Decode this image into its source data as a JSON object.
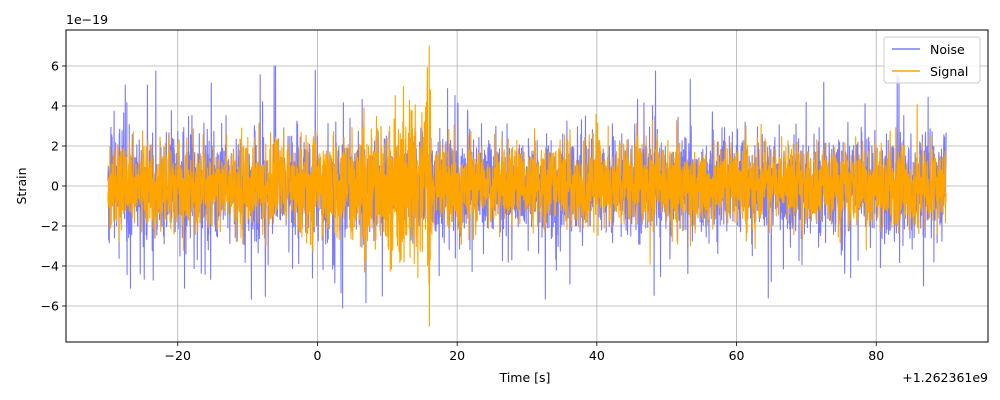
{
  "chart_data": {
    "type": "line",
    "xlabel": "Time [s]",
    "ylabel": "Strain",
    "x_offset_text": "+1.262361e9",
    "y_scale_text": "1e−19",
    "xlim": [
      -36,
      96
    ],
    "ylim": [
      -7.8,
      7.8
    ],
    "x_ticks": [
      -20,
      0,
      20,
      40,
      60,
      80
    ],
    "x_tick_labels": [
      "−20",
      "0",
      "20",
      "40",
      "60",
      "80"
    ],
    "y_ticks": [
      -6,
      -4,
      -2,
      0,
      2,
      4,
      6
    ],
    "y_tick_labels": [
      "−6",
      "−4",
      "−2",
      "0",
      "2",
      "4",
      "6"
    ],
    "grid": true,
    "legend_position": "top-right",
    "series": [
      {
        "name": "Noise",
        "color": "#7b7bff",
        "x_range": [
          -30,
          90
        ],
        "envelope": {
          "x": [
            -30,
            -20,
            -10,
            0,
            10,
            16,
            20,
            40,
            60,
            80,
            90
          ],
          "typical_amplitude": [
            2.3,
            2.3,
            2.4,
            2.4,
            2.4,
            2.3,
            2.3,
            2.3,
            2.3,
            2.3,
            2.3
          ],
          "peak_min": -6.1,
          "peak_max": 6.0
        }
      },
      {
        "name": "Signal",
        "color": "#ffa500",
        "x_range": [
          -30,
          90
        ],
        "envelope": {
          "x": [
            -30,
            -20,
            -10,
            0,
            5,
            10,
            14,
            16,
            16.5,
            30,
            60,
            90
          ],
          "typical_amplitude": [
            1.9,
            1.9,
            1.9,
            2.1,
            2.5,
            3.0,
            3.8,
            4.3,
            1.9,
            1.9,
            1.9,
            1.9
          ],
          "peak_min": -7.0,
          "peak_max": 7.0,
          "peak_x": 16
        }
      }
    ]
  }
}
